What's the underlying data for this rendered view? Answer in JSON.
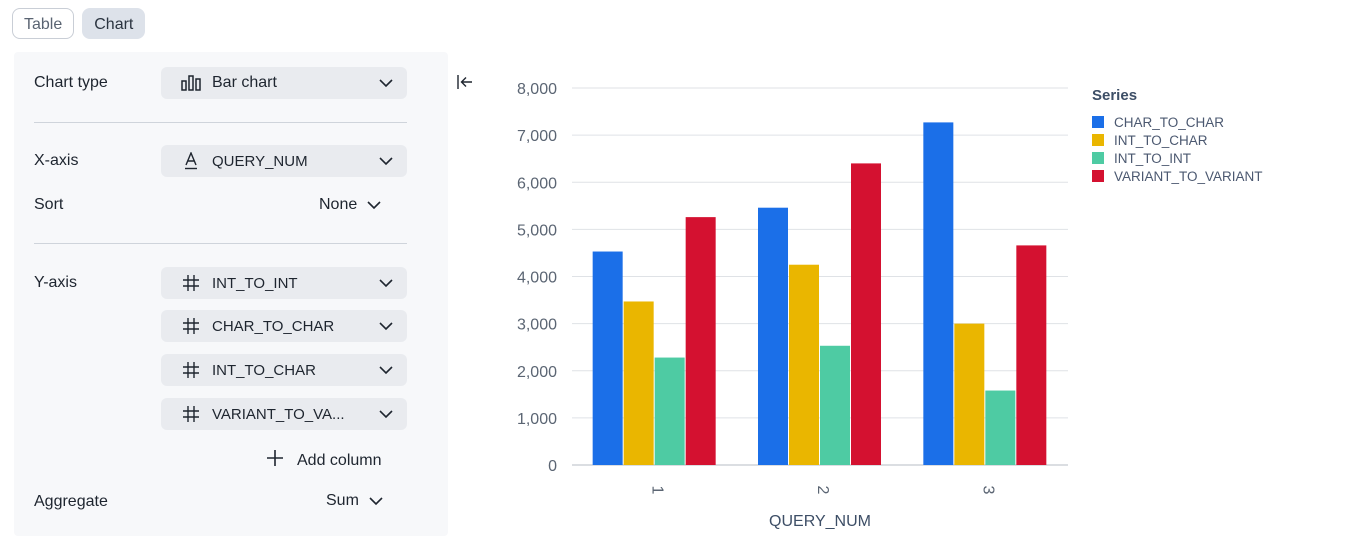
{
  "tabs": {
    "table_label": "Table",
    "chart_label": "Chart",
    "active": "Chart"
  },
  "config": {
    "chart_type": {
      "label": "Chart type",
      "value": "Bar chart",
      "icon": "bar-chart-icon"
    },
    "x_axis": {
      "label": "X-axis",
      "value": "QUERY_NUM",
      "icon": "text-type-icon"
    },
    "sort": {
      "label": "Sort",
      "value": "None"
    },
    "y_axis": {
      "label": "Y-axis",
      "columns": [
        "INT_TO_INT",
        "CHAR_TO_CHAR",
        "INT_TO_CHAR",
        "VARIANT_TO_VA..."
      ],
      "icon": "hash-icon"
    },
    "add_column_label": "Add column",
    "aggregate": {
      "label": "Aggregate",
      "value": "Sum"
    }
  },
  "colors": {
    "CHAR_TO_CHAR": "#1b6fe8",
    "INT_TO_CHAR": "#eab600",
    "INT_TO_INT": "#4ecba3",
    "VARIANT_TO_VARIANT": "#d41130"
  },
  "chart_data": {
    "type": "bar",
    "categories": [
      "1",
      "2",
      "3"
    ],
    "xlabel": "QUERY_NUM",
    "ylabel": "",
    "ylim": [
      0,
      8000
    ],
    "yticks": [
      "0",
      "1,000",
      "2,000",
      "3,000",
      "4,000",
      "5,000",
      "6,000",
      "7,000",
      "8,000"
    ],
    "grid": true,
    "legend_title": "Series",
    "legend_position": "top-right",
    "series": [
      {
        "name": "CHAR_TO_CHAR",
        "values": [
          4530,
          5460,
          7270
        ]
      },
      {
        "name": "INT_TO_CHAR",
        "values": [
          3470,
          4250,
          3000
        ]
      },
      {
        "name": "INT_TO_INT",
        "values": [
          2280,
          2530,
          1580
        ]
      },
      {
        "name": "VARIANT_TO_VARIANT",
        "values": [
          5260,
          6400,
          4660
        ]
      }
    ]
  }
}
